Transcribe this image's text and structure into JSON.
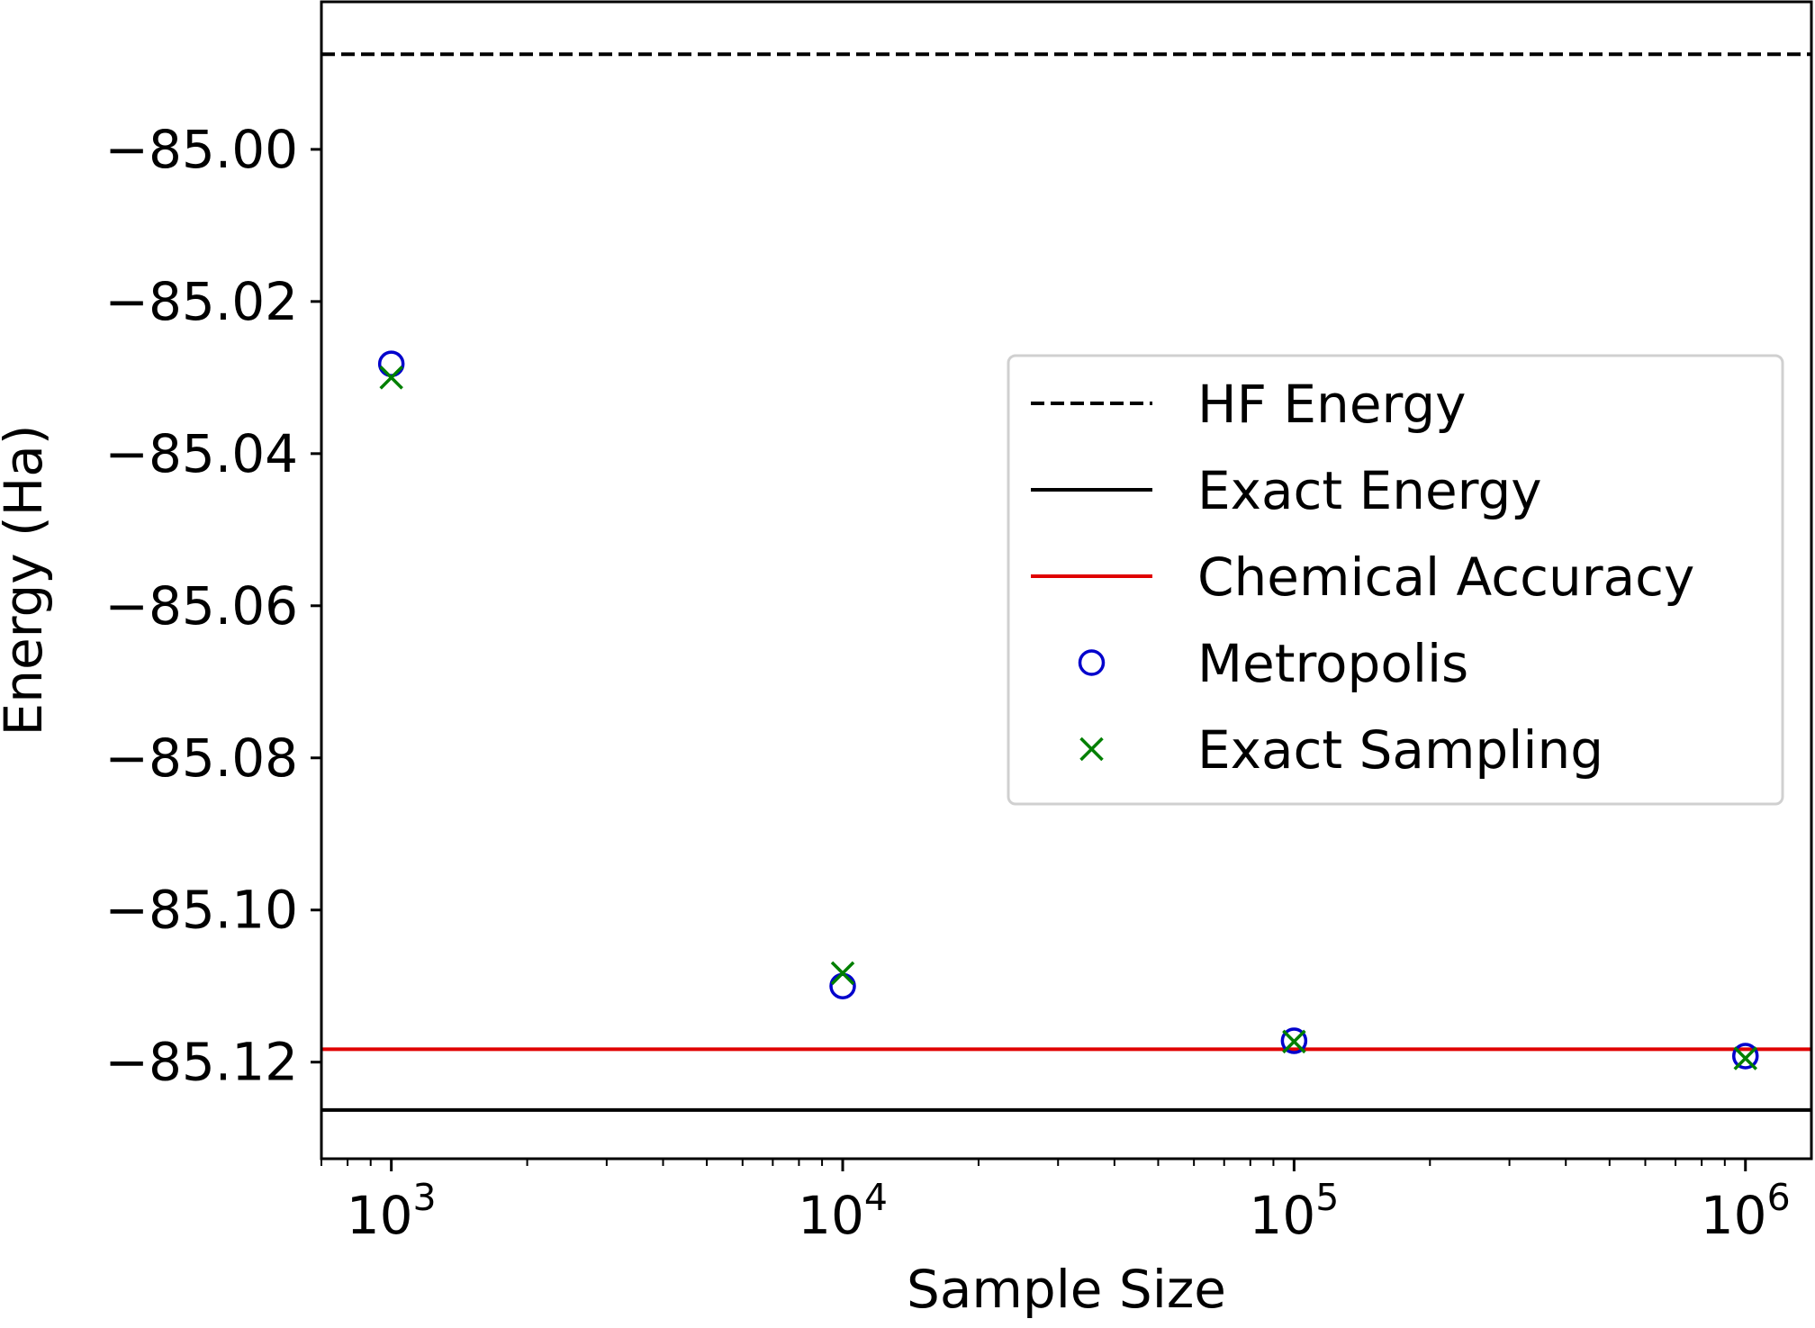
{
  "chart_data": {
    "type": "scatter",
    "title": "",
    "xlabel": "Sample Size",
    "ylabel": "Energy (Ha)",
    "xscale": "log",
    "xlim": [
      700,
      1400000
    ],
    "ylim": [
      -85.1327,
      -84.9806
    ],
    "grid": false,
    "legend_position": "right",
    "x_ticks": [
      {
        "value": 1000,
        "base": "10",
        "exp": "3"
      },
      {
        "value": 10000,
        "base": "10",
        "exp": "4"
      },
      {
        "value": 100000,
        "base": "10",
        "exp": "5"
      },
      {
        "value": 1000000,
        "base": "10",
        "exp": "6"
      }
    ],
    "y_ticks": [
      {
        "value": -85.12,
        "label": "−85.12"
      },
      {
        "value": -85.1,
        "label": "−85.10"
      },
      {
        "value": -85.08,
        "label": "−85.08"
      },
      {
        "value": -85.06,
        "label": "−85.06"
      },
      {
        "value": -85.04,
        "label": "−85.04"
      },
      {
        "value": -85.02,
        "label": "−85.02"
      },
      {
        "value": -85.0,
        "label": "−85.00"
      }
    ],
    "reference_lines": [
      {
        "name": "HF Energy",
        "y": -84.9875,
        "color": "#000000",
        "style": "dashed"
      },
      {
        "name": "Exact Energy",
        "y": -85.1263,
        "color": "#000000",
        "style": "solid"
      },
      {
        "name": "Chemical Accuracy",
        "y": -85.1183,
        "color": "#e00000",
        "style": "solid"
      }
    ],
    "series": [
      {
        "name": "Metropolis",
        "marker": "circle",
        "color": "#0000cc",
        "x": [
          1000,
          10000,
          100000,
          1000000
        ],
        "y": [
          -85.0282,
          -85.11,
          -85.1172,
          -85.1192
        ]
      },
      {
        "name": "Exact Sampling",
        "marker": "x",
        "color": "#007f00",
        "x": [
          1000,
          10000,
          100000,
          1000000
        ],
        "y": [
          -85.03,
          -85.1083,
          -85.1173,
          -85.1195
        ]
      }
    ]
  }
}
